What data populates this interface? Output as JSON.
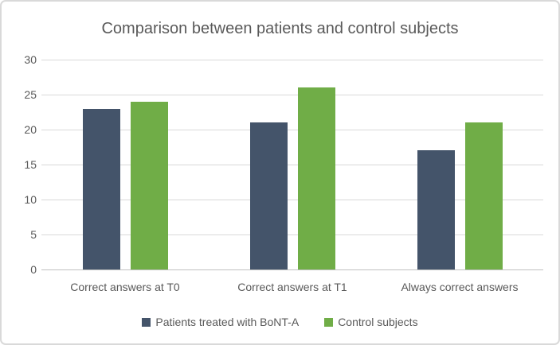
{
  "chart_data": {
    "type": "bar",
    "title": "Comparison between patients and control subjects",
    "categories": [
      "Correct answers at T0",
      "Correct answers at T1",
      "Always correct answers"
    ],
    "series": [
      {
        "name": "Patients treated with BoNT-A",
        "color": "#44546A",
        "values": [
          23,
          21,
          17
        ]
      },
      {
        "name": "Control subjects",
        "color": "#70AD47",
        "values": [
          24,
          26,
          21
        ]
      }
    ],
    "xlabel": "",
    "ylabel": "",
    "ylim": [
      0,
      30
    ],
    "yticks": [
      0,
      5,
      10,
      15,
      20,
      25,
      30
    ],
    "grid": true,
    "legend_position": "bottom"
  },
  "colors": {
    "title_text": "#595959",
    "axis_text": "#595959",
    "gridline": "#D9D9D9",
    "axis_line": "#BFBFBF",
    "frame_border": "#D9D9D9",
    "background": "#FFFFFF"
  }
}
